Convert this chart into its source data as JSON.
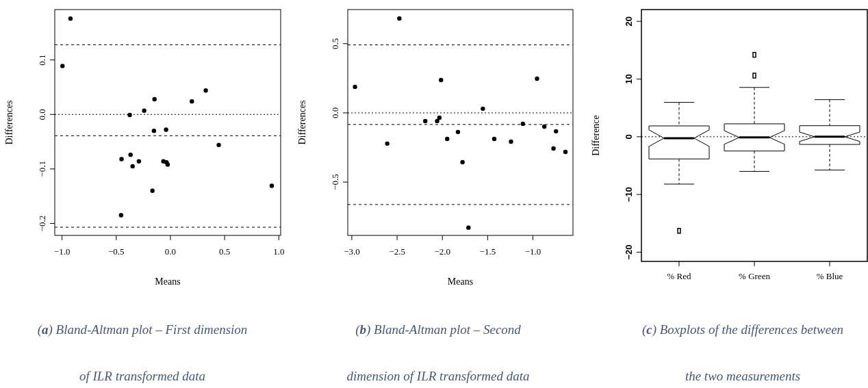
{
  "chart_data": [
    {
      "type": "scatter",
      "xlabel": "Means",
      "ylabel": "Differences",
      "marker": "circle",
      "annotations": [
        "(a) Bland-Altman plot – First dimension of ILR transformed data"
      ],
      "xlim": [
        -1.067,
        1.017
      ],
      "ylim": [
        -0.222,
        0.1925
      ],
      "xticks": [
        {
          "value": -1,
          "label": "−1.0"
        },
        {
          "value": -0.5,
          "label": "−0.5"
        },
        {
          "value": 0,
          "label": "0.0"
        },
        {
          "value": 0.5,
          "label": "0.5"
        },
        {
          "value": 1,
          "label": "1.0"
        }
      ],
      "yticks": [
        {
          "value": -0.2,
          "label": "−0.2"
        },
        {
          "value": -0.1,
          "label": "−0.1"
        },
        {
          "value": 0,
          "label": "0.0"
        },
        {
          "value": 0.1,
          "label": "0.1"
        }
      ],
      "ref_lines": [
        {
          "axis": "y",
          "value": 0.128,
          "line_style": "dashed"
        },
        {
          "axis": "y",
          "value": -0.039,
          "line_style": "dashed"
        },
        {
          "axis": "y",
          "value": -0.207,
          "line_style": "dashed"
        },
        {
          "axis": "y",
          "value": 0,
          "line_style": "dotted"
        }
      ],
      "series": [
        {
          "color": "#000000",
          "x": [
            -0.922,
            -0.996,
            -0.375,
            -0.242,
            -0.147,
            -0.152,
            -0.04,
            0.198,
            0.326,
            0.446,
            -0.451,
            -0.368,
            -0.349,
            -0.291,
            -0.065,
            -0.036,
            -0.025,
            -0.166,
            -0.455,
            0.935
          ],
          "values": [
            0.176,
            0.089,
            -0.001,
            0.007,
            0.028,
            -0.03,
            -0.028,
            0.024,
            0.044,
            -0.056,
            -0.082,
            -0.074,
            -0.095,
            -0.086,
            -0.086,
            -0.088,
            -0.092,
            -0.14,
            -0.185,
            -0.131
          ]
        }
      ]
    },
    {
      "type": "scatter",
      "xlabel": "Means",
      "ylabel": "Differences",
      "marker": "circle",
      "annotations": [
        "(b) Bland-Altman plot – Second dimension of ILR transformed data"
      ],
      "xlim": [
        -3.045,
        -0.558
      ],
      "ylim": [
        -0.885,
        0.746
      ],
      "xticks": [
        {
          "value": -3,
          "label": "−3.0"
        },
        {
          "value": -2.5,
          "label": "−2.5"
        },
        {
          "value": -2,
          "label": "−2.0"
        },
        {
          "value": -1.5,
          "label": "−1.5"
        },
        {
          "value": -1,
          "label": "−1.0"
        }
      ],
      "yticks": [
        {
          "value": -0.5,
          "label": "−0.5"
        },
        {
          "value": 0,
          "label": "0.0"
        },
        {
          "value": 0.5,
          "label": "0.5"
        }
      ],
      "ref_lines": [
        {
          "axis": "y",
          "value": 0.491,
          "line_style": "dashed"
        },
        {
          "axis": "y",
          "value": -0.084,
          "line_style": "dashed"
        },
        {
          "axis": "y",
          "value": -0.662,
          "line_style": "dashed"
        },
        {
          "axis": "y",
          "value": 0,
          "line_style": "dotted"
        }
      ],
      "series": [
        {
          "color": "#000000",
          "x": [
            -2.965,
            -2.609,
            -2.475,
            -2.189,
            -2.058,
            -2.033,
            -2.015,
            -1.947,
            -1.828,
            -1.778,
            -1.712,
            -1.553,
            -1.427,
            -1.242,
            -1.111,
            -0.955,
            -0.874,
            -0.745,
            -0.773,
            -0.641
          ],
          "values": [
            0.188,
            -0.222,
            0.682,
            -0.059,
            -0.059,
            -0.035,
            0.237,
            -0.188,
            -0.138,
            -0.356,
            -0.829,
            0.03,
            -0.188,
            -0.208,
            -0.079,
            0.247,
            -0.099,
            -0.133,
            -0.257,
            -0.282
          ]
        }
      ]
    },
    {
      "type": "box",
      "ylabel": "Difference",
      "annotations": [
        "(c) Boxplots of the differences between the two measurements"
      ],
      "categories": [
        "% Red",
        "% Green",
        "% Blue"
      ],
      "ylim": [
        -21.6,
        22.04
      ],
      "yticks": [
        {
          "value": -20,
          "label": "−20"
        },
        {
          "value": -10,
          "label": "−10"
        },
        0,
        10,
        20
      ],
      "ref_lines": [
        {
          "axis": "y",
          "value": 0,
          "line_style": "dotted"
        }
      ],
      "boxes": [
        {
          "low": -8.2,
          "q1": -3.84,
          "median": -0.24,
          "q3": 1.88,
          "high": 5.96,
          "outliers": [
            -16.3
          ]
        },
        {
          "low": -6.0,
          "q1": -2.47,
          "median": -0.12,
          "q3": 2.24,
          "high": 8.55,
          "outliers": [
            14.2,
            10.6
          ]
        },
        {
          "low": -5.76,
          "q1": -1.33,
          "median": 0,
          "q3": 1.92,
          "high": 6.43
        }
      ]
    }
  ]
}
